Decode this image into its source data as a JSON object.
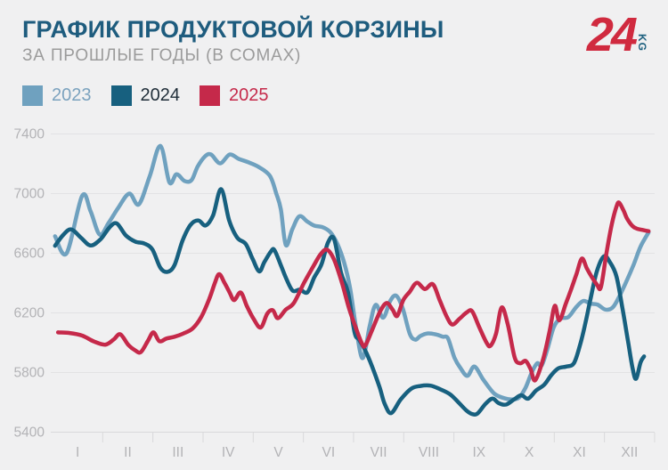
{
  "header": {
    "title": "ГРАФИК ПРОДУКТОВОЙ КОРЗИНЫ",
    "subtitle": "ЗА ПРОШЛЫЕ ГОДЫ (В СОМАХ)",
    "logo": {
      "number": "24",
      "suffix": "KG"
    }
  },
  "colors": {
    "background": "#F0F0F1",
    "title": "#1E5C7E",
    "subtitle": "#9B9B9B",
    "logo_red": "#D02A3F",
    "logo_suffix": "#1C5F7E",
    "axis_label": "#B3B3B6",
    "gridline": "#E2E2E4",
    "axis_line": "#D9D9DB"
  },
  "chart_data": {
    "type": "line",
    "title": "ГРАФИК ПРОДУКТОВОЙ КОРЗИНЫ",
    "subtitle": "ЗА ПРОШЛЫЕ ГОДЫ (В СОМАХ)",
    "units": "сом",
    "grid": true,
    "legend_position": "top-left",
    "x_axis": {
      "type": "months",
      "note": "x in points = months elapsed since start of year (0–12); tick label m centered at m-0.5",
      "categories": [
        "I",
        "II",
        "III",
        "IV",
        "V",
        "VI",
        "VII",
        "VIII",
        "IX",
        "X",
        "XI",
        "XII"
      ]
    },
    "y_axis": {
      "min": 5400,
      "max": 7400,
      "tick_step": 400,
      "ticks": [
        7400,
        7000,
        6600,
        6200,
        5800,
        5400
      ]
    },
    "series": [
      {
        "name": "2023",
        "color": "#6FA1BF",
        "label_color": "#7BA2BE",
        "points": [
          [
            0.05,
            6714
          ],
          [
            0.28,
            6600
          ],
          [
            0.59,
            6985
          ],
          [
            0.76,
            6880
          ],
          [
            0.94,
            6725
          ],
          [
            1.12,
            6805
          ],
          [
            1.31,
            6905
          ],
          [
            1.53,
            7000
          ],
          [
            1.72,
            6928
          ],
          [
            1.94,
            7120
          ],
          [
            2.15,
            7320
          ],
          [
            2.33,
            7075
          ],
          [
            2.47,
            7130
          ],
          [
            2.63,
            7085
          ],
          [
            2.77,
            7090
          ],
          [
            2.89,
            7180
          ],
          [
            3.04,
            7250
          ],
          [
            3.16,
            7262
          ],
          [
            3.34,
            7203
          ],
          [
            3.53,
            7262
          ],
          [
            3.71,
            7233
          ],
          [
            3.89,
            7212
          ],
          [
            4.1,
            7180
          ],
          [
            4.33,
            7120
          ],
          [
            4.46,
            7000
          ],
          [
            4.55,
            6895
          ],
          [
            4.65,
            6655
          ],
          [
            4.78,
            6762
          ],
          [
            4.92,
            6848
          ],
          [
            5.08,
            6812
          ],
          [
            5.22,
            6785
          ],
          [
            5.38,
            6775
          ],
          [
            5.54,
            6740
          ],
          [
            5.68,
            6660
          ],
          [
            5.81,
            6540
          ],
          [
            5.93,
            6368
          ],
          [
            6.05,
            6100
          ],
          [
            6.18,
            5896
          ],
          [
            6.32,
            6110
          ],
          [
            6.44,
            6254
          ],
          [
            6.59,
            6168
          ],
          [
            6.73,
            6280
          ],
          [
            6.85,
            6315
          ],
          [
            6.98,
            6230
          ],
          [
            7.12,
            6060
          ],
          [
            7.23,
            6020
          ],
          [
            7.33,
            6045
          ],
          [
            7.47,
            6062
          ],
          [
            7.65,
            6055
          ],
          [
            7.78,
            6040
          ],
          [
            7.88,
            6030
          ],
          [
            8.01,
            5900
          ],
          [
            8.13,
            5830
          ],
          [
            8.27,
            5778
          ],
          [
            8.41,
            5840
          ],
          [
            8.59,
            5750
          ],
          [
            8.8,
            5660
          ],
          [
            9.0,
            5628
          ],
          [
            9.16,
            5620
          ],
          [
            9.3,
            5632
          ],
          [
            9.43,
            5700
          ],
          [
            9.55,
            5800
          ],
          [
            9.66,
            5862
          ],
          [
            9.75,
            5848
          ],
          [
            9.87,
            5965
          ],
          [
            9.99,
            6104
          ],
          [
            10.12,
            6162
          ],
          [
            10.28,
            6172
          ],
          [
            10.44,
            6240
          ],
          [
            10.58,
            6280
          ],
          [
            10.72,
            6262
          ],
          [
            10.86,
            6256
          ],
          [
            11.02,
            6222
          ],
          [
            11.17,
            6238
          ],
          [
            11.31,
            6320
          ],
          [
            11.45,
            6420
          ],
          [
            11.59,
            6530
          ],
          [
            11.72,
            6645
          ],
          [
            11.88,
            6740
          ]
        ]
      },
      {
        "name": "2024",
        "color": "#17607F",
        "label_color": "#1F2D38",
        "points": [
          [
            0.05,
            6650
          ],
          [
            0.21,
            6722
          ],
          [
            0.37,
            6760
          ],
          [
            0.57,
            6703
          ],
          [
            0.76,
            6652
          ],
          [
            0.96,
            6695
          ],
          [
            1.14,
            6775
          ],
          [
            1.28,
            6800
          ],
          [
            1.46,
            6720
          ],
          [
            1.65,
            6678
          ],
          [
            1.83,
            6665
          ],
          [
            1.99,
            6625
          ],
          [
            2.15,
            6502
          ],
          [
            2.29,
            6475
          ],
          [
            2.43,
            6520
          ],
          [
            2.59,
            6684
          ],
          [
            2.75,
            6790
          ],
          [
            2.91,
            6820
          ],
          [
            3.05,
            6786
          ],
          [
            3.2,
            6855
          ],
          [
            3.36,
            7030
          ],
          [
            3.52,
            6820
          ],
          [
            3.68,
            6705
          ],
          [
            3.85,
            6662
          ],
          [
            3.99,
            6560
          ],
          [
            4.12,
            6478
          ],
          [
            4.22,
            6540
          ],
          [
            4.35,
            6610
          ],
          [
            4.42,
            6622
          ],
          [
            4.55,
            6520
          ],
          [
            4.67,
            6420
          ],
          [
            4.79,
            6348
          ],
          [
            4.93,
            6356
          ],
          [
            5.08,
            6338
          ],
          [
            5.22,
            6440
          ],
          [
            5.36,
            6525
          ],
          [
            5.49,
            6672
          ],
          [
            5.61,
            6696
          ],
          [
            5.75,
            6470
          ],
          [
            5.89,
            6335
          ],
          [
            6.02,
            6070
          ],
          [
            6.11,
            6020
          ],
          [
            6.23,
            5950
          ],
          [
            6.37,
            5840
          ],
          [
            6.52,
            5700
          ],
          [
            6.62,
            5590
          ],
          [
            6.75,
            5528
          ],
          [
            6.94,
            5620
          ],
          [
            7.15,
            5692
          ],
          [
            7.33,
            5710
          ],
          [
            7.53,
            5712
          ],
          [
            7.7,
            5692
          ],
          [
            7.92,
            5655
          ],
          [
            8.09,
            5600
          ],
          [
            8.25,
            5545
          ],
          [
            8.36,
            5522
          ],
          [
            8.47,
            5525
          ],
          [
            8.63,
            5590
          ],
          [
            8.77,
            5625
          ],
          [
            8.89,
            5595
          ],
          [
            9.04,
            5585
          ],
          [
            9.2,
            5620
          ],
          [
            9.34,
            5648
          ],
          [
            9.48,
            5625
          ],
          [
            9.64,
            5680
          ],
          [
            9.8,
            5718
          ],
          [
            9.94,
            5782
          ],
          [
            10.08,
            5828
          ],
          [
            10.24,
            5840
          ],
          [
            10.39,
            5862
          ],
          [
            10.51,
            5980
          ],
          [
            10.62,
            6130
          ],
          [
            10.72,
            6290
          ],
          [
            10.85,
            6480
          ],
          [
            10.99,
            6580
          ],
          [
            11.11,
            6540
          ],
          [
            11.24,
            6445
          ],
          [
            11.36,
            6230
          ],
          [
            11.47,
            6010
          ],
          [
            11.56,
            5830
          ],
          [
            11.63,
            5758
          ],
          [
            11.72,
            5868
          ],
          [
            11.79,
            5908
          ]
        ]
      },
      {
        "name": "2025",
        "color": "#C5294A",
        "label_color": "#C5294A",
        "points": [
          [
            0.11,
            6069
          ],
          [
            0.34,
            6065
          ],
          [
            0.59,
            6048
          ],
          [
            0.82,
            6009
          ],
          [
            1.05,
            5987
          ],
          [
            1.22,
            6022
          ],
          [
            1.35,
            6057
          ],
          [
            1.51,
            5985
          ],
          [
            1.65,
            5948
          ],
          [
            1.76,
            5937
          ],
          [
            1.9,
            6012
          ],
          [
            2.01,
            6069
          ],
          [
            2.13,
            6010
          ],
          [
            2.27,
            6028
          ],
          [
            2.43,
            6040
          ],
          [
            2.61,
            6062
          ],
          [
            2.79,
            6095
          ],
          [
            2.96,
            6170
          ],
          [
            3.12,
            6290
          ],
          [
            3.23,
            6395
          ],
          [
            3.32,
            6460
          ],
          [
            3.43,
            6400
          ],
          [
            3.53,
            6337
          ],
          [
            3.62,
            6286
          ],
          [
            3.75,
            6337
          ],
          [
            3.87,
            6248
          ],
          [
            4.01,
            6158
          ],
          [
            4.15,
            6102
          ],
          [
            4.28,
            6195
          ],
          [
            4.39,
            6218
          ],
          [
            4.49,
            6164
          ],
          [
            4.65,
            6222
          ],
          [
            4.81,
            6266
          ],
          [
            5.01,
            6400
          ],
          [
            5.18,
            6502
          ],
          [
            5.34,
            6592
          ],
          [
            5.47,
            6624
          ],
          [
            5.61,
            6558
          ],
          [
            5.77,
            6400
          ],
          [
            5.91,
            6230
          ],
          [
            6.05,
            6095
          ],
          [
            6.16,
            6000
          ],
          [
            6.23,
            5979
          ],
          [
            6.37,
            6085
          ],
          [
            6.53,
            6210
          ],
          [
            6.66,
            6266
          ],
          [
            6.78,
            6220
          ],
          [
            6.87,
            6180
          ],
          [
            6.99,
            6285
          ],
          [
            7.12,
            6342
          ],
          [
            7.26,
            6402
          ],
          [
            7.42,
            6360
          ],
          [
            7.58,
            6392
          ],
          [
            7.72,
            6282
          ],
          [
            7.86,
            6172
          ],
          [
            7.97,
            6122
          ],
          [
            8.11,
            6160
          ],
          [
            8.25,
            6202
          ],
          [
            8.36,
            6212
          ],
          [
            8.5,
            6108
          ],
          [
            8.65,
            6000
          ],
          [
            8.73,
            5980
          ],
          [
            8.84,
            6062
          ],
          [
            8.95,
            6236
          ],
          [
            9.07,
            6128
          ],
          [
            9.21,
            5902
          ],
          [
            9.32,
            5862
          ],
          [
            9.43,
            5878
          ],
          [
            9.53,
            5822
          ],
          [
            9.62,
            5748
          ],
          [
            9.78,
            5892
          ],
          [
            9.91,
            6082
          ],
          [
            10.01,
            6248
          ],
          [
            10.1,
            6150
          ],
          [
            10.23,
            6262
          ],
          [
            10.33,
            6352
          ],
          [
            10.44,
            6458
          ],
          [
            10.55,
            6564
          ],
          [
            10.65,
            6498
          ],
          [
            10.74,
            6445
          ],
          [
            10.85,
            6390
          ],
          [
            10.93,
            6373
          ],
          [
            11.04,
            6600
          ],
          [
            11.15,
            6800
          ],
          [
            11.24,
            6912
          ],
          [
            11.29,
            6940
          ],
          [
            11.38,
            6888
          ],
          [
            11.45,
            6833
          ],
          [
            11.56,
            6782
          ],
          [
            11.65,
            6765
          ],
          [
            11.75,
            6757
          ],
          [
            11.88,
            6748
          ]
        ]
      }
    ]
  }
}
